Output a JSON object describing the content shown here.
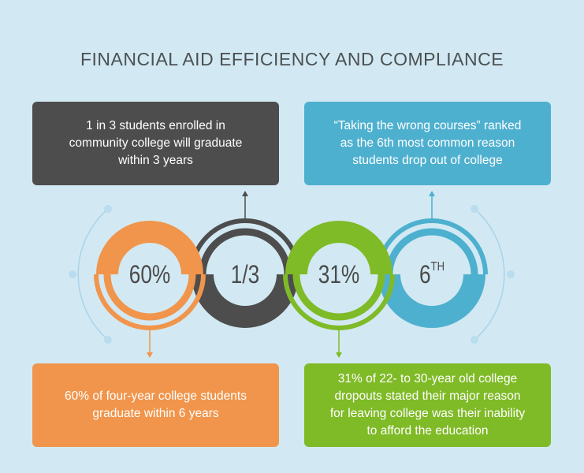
{
  "title": "FINANCIAL AID EFFICIENCY AND COMPLIANCE",
  "colors": {
    "background": "#d2e9f3",
    "orange": "#f0954b",
    "dark": "#4d4d4d",
    "green": "#7fba27",
    "blue": "#4eb0cf",
    "light_line": "#a9d3e8"
  },
  "stats": [
    {
      "value": "60%",
      "color": "orange"
    },
    {
      "value": "1/3",
      "color": "dark"
    },
    {
      "value": "31%",
      "color": "green"
    },
    {
      "value": "6",
      "suffix": "TH",
      "color": "blue"
    }
  ],
  "cards": {
    "community_college": {
      "lines": [
        "1 in 3 students enrolled in",
        "community college will graduate",
        "within 3 years"
      ]
    },
    "wrong_courses": {
      "lines": [
        "“Taking the wrong courses” ranked",
        "as the 6th most common reason",
        "students drop out of college"
      ]
    },
    "four_year": {
      "lines": [
        "60% of four-year college students",
        "graduate within 6 years"
      ]
    },
    "dropouts": {
      "lines": [
        "31% of 22- to 30-year old college",
        "dropouts stated their major reason",
        "for leaving college was their inability",
        "to afford the education"
      ]
    }
  }
}
